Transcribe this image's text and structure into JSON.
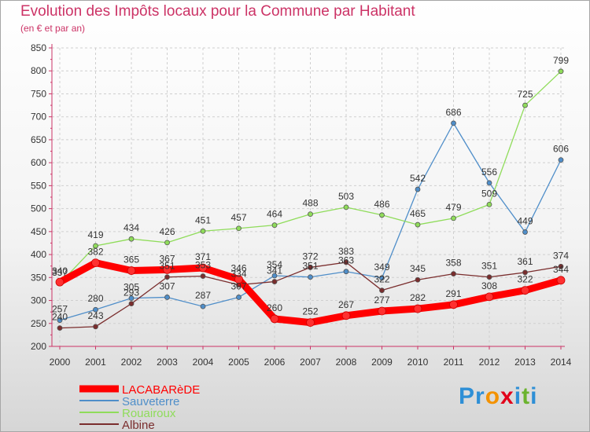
{
  "title": "Evolution des Impôts locaux pour la Commune par Habitant",
  "subtitle": "(en € et par an)",
  "logo": {
    "text": "Proxiti",
    "colors": [
      "#2e8fd6",
      "#2e8fd6",
      "#f39200",
      "#e2001a",
      "#2e8fd6",
      "#6bb32e",
      "#2e8fd6"
    ]
  },
  "chart_data": {
    "type": "line",
    "title": "Evolution des Impôts locaux pour la Commune par Habitant",
    "subtitle": "(en € et par an)",
    "xlabel": "",
    "ylabel": "",
    "ylim": [
      200,
      850
    ],
    "yticks": [
      200,
      250,
      300,
      350,
      400,
      450,
      500,
      550,
      600,
      650,
      700,
      750,
      800,
      850
    ],
    "grid": true,
    "legend_position": "bottom-left",
    "x": [
      "2000",
      "2001",
      "2002",
      "2003",
      "2004",
      "2005",
      "2006",
      "2007",
      "2008",
      "2009",
      "2010",
      "2011",
      "2012",
      "2013",
      "2014"
    ],
    "series": [
      {
        "name": "LACABARèDE",
        "color": "#ff0000",
        "values": [
          340,
          382,
          365,
          367,
          371,
          346,
          260,
          252,
          267,
          277,
          282,
          291,
          308,
          322,
          344
        ]
      },
      {
        "name": "Sauveterre",
        "color": "#4f8ec9",
        "values": [
          257,
          280,
          305,
          307,
          287,
          307,
          354,
          351,
          363,
          349,
          542,
          686,
          556,
          449,
          606
        ]
      },
      {
        "name": "Rouairoux",
        "color": "#8fdc5a",
        "values": [
          337,
          419,
          434,
          426,
          451,
          457,
          464,
          488,
          503,
          486,
          465,
          479,
          509,
          725,
          799
        ]
      },
      {
        "name": "Albine",
        "color": "#7a2d2d",
        "values": [
          240,
          243,
          293,
          351,
          353,
          334,
          341,
          372,
          383,
          322,
          345,
          358,
          351,
          361,
          374
        ]
      }
    ],
    "data_labels": [
      {
        "series": "LACABARèDE",
        "values": [
          "340",
          "382",
          "365",
          "367",
          "371",
          "346",
          "260",
          "252",
          "267",
          "277",
          "282",
          "291",
          "308",
          "322",
          "344"
        ]
      },
      {
        "series": "Sauveterre",
        "values": [
          "257",
          "280",
          "305",
          "307",
          "287",
          "307",
          "354",
          "351",
          "363",
          "349",
          "542",
          "686",
          "556",
          "449",
          "606"
        ]
      },
      {
        "series": "Rouairoux",
        "values": [
          "337",
          "419",
          "434",
          "426",
          "451",
          "457",
          "464",
          "488",
          "503",
          "486",
          "465",
          "479",
          "509",
          "725",
          "799"
        ]
      },
      {
        "series": "Albine",
        "values": [
          "240",
          "243",
          "293",
          "351",
          "353",
          "334",
          "341",
          "372",
          "383",
          "322",
          "345",
          "358",
          "351",
          "361",
          "374"
        ]
      }
    ]
  }
}
